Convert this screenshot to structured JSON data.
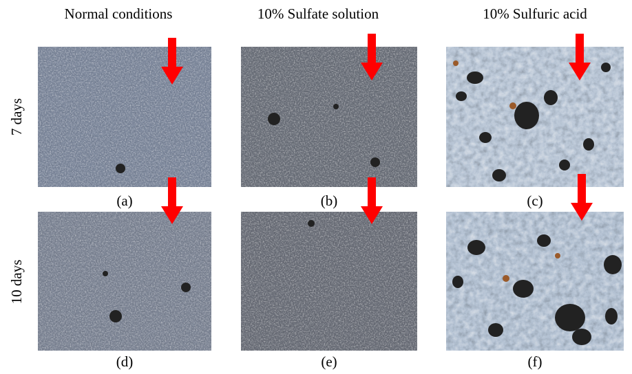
{
  "columns": [
    "Normal conditions",
    "10% Sulfate solution",
    "10% Sulfuric acid"
  ],
  "rows": [
    "7 days",
    "10 days"
  ],
  "panels": [
    "(a)",
    "(b)",
    "(c)",
    "(d)",
    "(e)",
    "(f)"
  ]
}
